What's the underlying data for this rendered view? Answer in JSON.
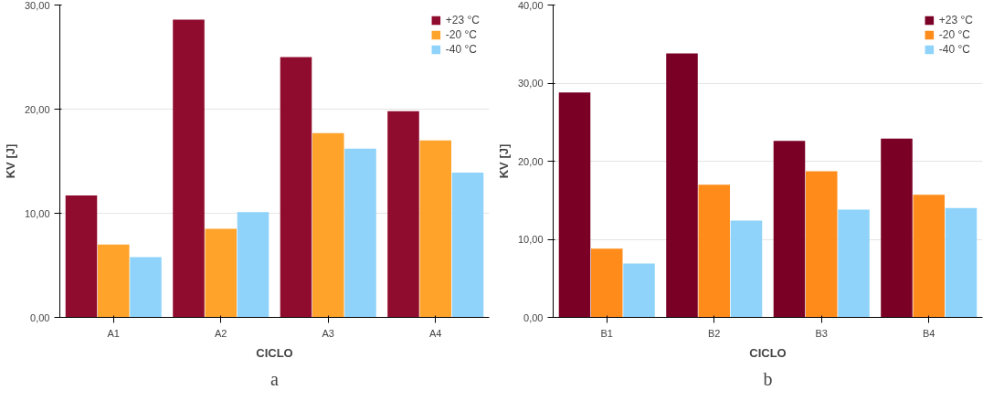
{
  "chart_data": [
    {
      "type": "bar",
      "xlabel": "CICLO",
      "ylabel": "KV [J]",
      "categories": [
        "A1",
        "A2",
        "A3",
        "A4"
      ],
      "series": [
        {
          "name": "+23 °C",
          "color": "#900c2e",
          "values": [
            11.7,
            28.6,
            25.0,
            19.8
          ]
        },
        {
          "name": "-20 °C",
          "color": "#ffa32b",
          "values": [
            7.0,
            8.5,
            17.7,
            17.0
          ]
        },
        {
          "name": "-40 °C",
          "color": "#8fd3fa",
          "values": [
            5.8,
            10.1,
            16.2,
            13.9
          ]
        }
      ],
      "ylim": [
        0,
        30
      ],
      "yticks": [
        {
          "value": 0,
          "label": "0,00"
        },
        {
          "value": 10,
          "label": "10,00"
        },
        {
          "value": 20,
          "label": "20,00"
        },
        {
          "value": 30,
          "label": "30,00"
        }
      ],
      "grid": "y",
      "legend": "top right",
      "annotations": [
        "a"
      ]
    },
    {
      "type": "bar",
      "xlabel": "CICLO",
      "ylabel": "KV [J]",
      "categories": [
        "B1",
        "B2",
        "B3",
        "B4"
      ],
      "series": [
        {
          "name": "+23 °C",
          "color": "#7a0026",
          "values": [
            28.8,
            33.8,
            22.6,
            22.9
          ]
        },
        {
          "name": "-20 °C",
          "color": "#ff8c1a",
          "values": [
            8.8,
            17.0,
            18.7,
            15.7
          ]
        },
        {
          "name": "-40 °C",
          "color": "#8fd3fa",
          "values": [
            6.9,
            12.4,
            13.8,
            14.0
          ]
        }
      ],
      "ylim": [
        0,
        40
      ],
      "yticks": [
        {
          "value": 0,
          "label": "0,00"
        },
        {
          "value": 10,
          "label": "10,00"
        },
        {
          "value": 20,
          "label": "20,00"
        },
        {
          "value": 30,
          "label": "30,00"
        },
        {
          "value": 40,
          "label": "40,00"
        }
      ],
      "grid": "y",
      "legend": "top right",
      "annotations": [
        "b"
      ]
    }
  ]
}
